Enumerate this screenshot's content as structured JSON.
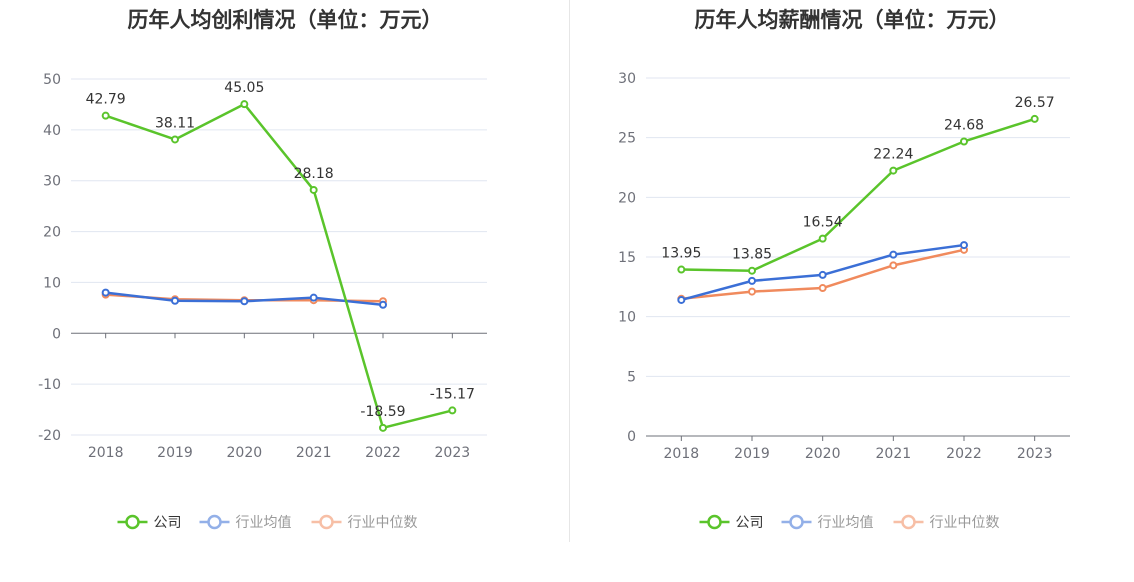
{
  "chart_data": [
    {
      "type": "line",
      "title": "历年人均创利情况（单位：万元）",
      "categories": [
        "2018",
        "2019",
        "2020",
        "2021",
        "2022",
        "2023"
      ],
      "ylim": [
        -20,
        50
      ],
      "yticks": [
        50,
        40,
        30,
        20,
        10,
        0,
        -10,
        -20
      ],
      "series": [
        {
          "name": "公司",
          "color": "#5ac42b",
          "values": [
            42.79,
            38.11,
            45.05,
            28.18,
            -18.59,
            -15.17
          ],
          "labels": [
            "42.79",
            "38.11",
            "45.05",
            "28.18",
            "-18.59",
            "-15.17"
          ]
        },
        {
          "name": "行业均值",
          "color": "#3b6fd6",
          "values": [
            8.0,
            6.4,
            6.3,
            7.0,
            5.6,
            null
          ]
        },
        {
          "name": "行业中位数",
          "color": "#f08a5d",
          "values": [
            7.6,
            6.7,
            6.5,
            6.5,
            6.3,
            null
          ]
        }
      ],
      "grid": true,
      "legend": "bottom"
    },
    {
      "type": "line",
      "title": "历年人均薪酬情况（单位：万元）",
      "categories": [
        "2018",
        "2019",
        "2020",
        "2021",
        "2022",
        "2023"
      ],
      "ylim": [
        0,
        30
      ],
      "yticks": [
        30,
        25,
        20,
        15,
        10,
        5,
        0
      ],
      "series": [
        {
          "name": "公司",
          "color": "#5ac42b",
          "values": [
            13.95,
            13.85,
            16.54,
            22.24,
            24.68,
            26.57
          ],
          "labels": [
            "13.95",
            "13.85",
            "16.54",
            "22.24",
            "24.68",
            "26.57"
          ]
        },
        {
          "name": "行业均值",
          "color": "#3b6fd6",
          "values": [
            11.4,
            13.0,
            13.5,
            15.2,
            16.0,
            null
          ]
        },
        {
          "name": "行业中位数",
          "color": "#f08a5d",
          "values": [
            11.5,
            12.1,
            12.4,
            14.3,
            15.6,
            null
          ]
        }
      ],
      "grid": true,
      "legend": "bottom"
    }
  ]
}
